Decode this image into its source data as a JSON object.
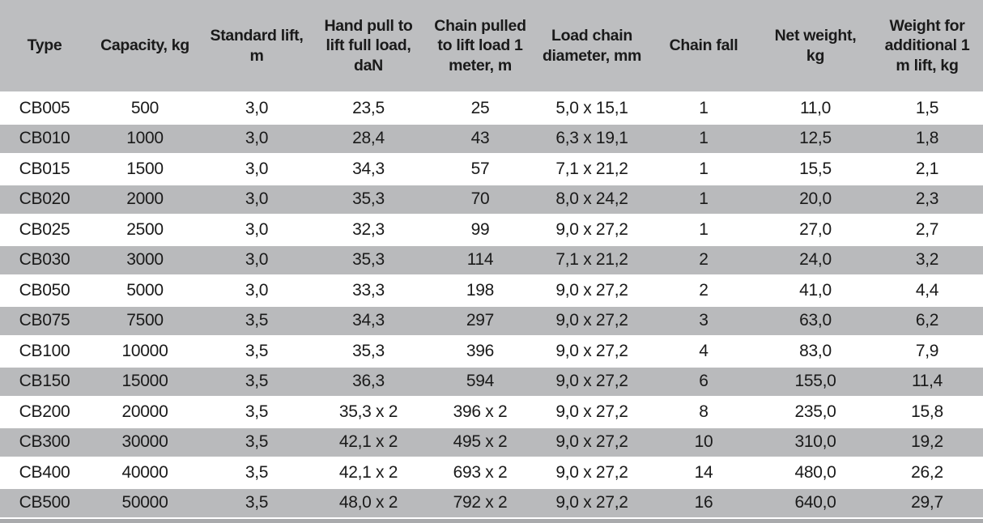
{
  "table": {
    "columns": [
      "Type",
      "Capacity, kg",
      "Standard lift, m",
      "Hand pull to lift full load, daN",
      "Chain pulled to lift load 1 meter, m",
      "Load chain diameter, mm",
      "Chain fall",
      "Net weight, kg",
      "Weight for additional 1 m lift, kg"
    ],
    "rows": [
      [
        "CB005",
        "500",
        "3,0",
        "23,5",
        "25",
        "5,0 x 15,1",
        "1",
        "11,0",
        "1,5"
      ],
      [
        "CB010",
        "1000",
        "3,0",
        "28,4",
        "43",
        "6,3 x 19,1",
        "1",
        "12,5",
        "1,8"
      ],
      [
        "CB015",
        "1500",
        "3,0",
        "34,3",
        "57",
        "7,1 x 21,2",
        "1",
        "15,5",
        "2,1"
      ],
      [
        "CB020",
        "2000",
        "3,0",
        "35,3",
        "70",
        "8,0 x 24,2",
        "1",
        "20,0",
        "2,3"
      ],
      [
        "CB025",
        "2500",
        "3,0",
        "32,3",
        "99",
        "9,0 x 27,2",
        "1",
        "27,0",
        "2,7"
      ],
      [
        "CB030",
        "3000",
        "3,0",
        "35,3",
        "114",
        "7,1 x 21,2",
        "2",
        "24,0",
        "3,2"
      ],
      [
        "CB050",
        "5000",
        "3,0",
        "33,3",
        "198",
        "9,0 x 27,2",
        "2",
        "41,0",
        "4,4"
      ],
      [
        "CB075",
        "7500",
        "3,5",
        "34,3",
        "297",
        "9,0 x 27,2",
        "3",
        "63,0",
        "6,2"
      ],
      [
        "CB100",
        "10000",
        "3,5",
        "35,3",
        "396",
        "9,0 x 27,2",
        "4",
        "83,0",
        "7,9"
      ],
      [
        "CB150",
        "15000",
        "3,5",
        "36,3",
        "594",
        "9,0 x 27,2",
        "6",
        "155,0",
        "11,4"
      ],
      [
        "CB200",
        "20000",
        "3,5",
        "35,3 x 2",
        "396 x 2",
        "9,0 x 27,2",
        "8",
        "235,0",
        "15,8"
      ],
      [
        "CB300",
        "30000",
        "3,5",
        "42,1 x 2",
        "495 x 2",
        "9,0 x 27,2",
        "10",
        "310,0",
        "19,2"
      ],
      [
        "CB400",
        "40000",
        "3,5",
        "42,1 x 2",
        "693 x 2",
        "9,0 x 27,2",
        "14",
        "480,0",
        "26,2"
      ],
      [
        "CB500",
        "50000",
        "3,5",
        "48,0 x 2",
        "792 x 2",
        "9,0 x 27,2",
        "16",
        "640,0",
        "29,7"
      ]
    ]
  },
  "colors": {
    "header_bg": "#bdbec0",
    "row_alt_bg": "#b9babc",
    "row_bg": "#ffffff",
    "text": "#1a1a1a",
    "separator": "#ffffff",
    "bottom_edge": "#a9aaac"
  }
}
